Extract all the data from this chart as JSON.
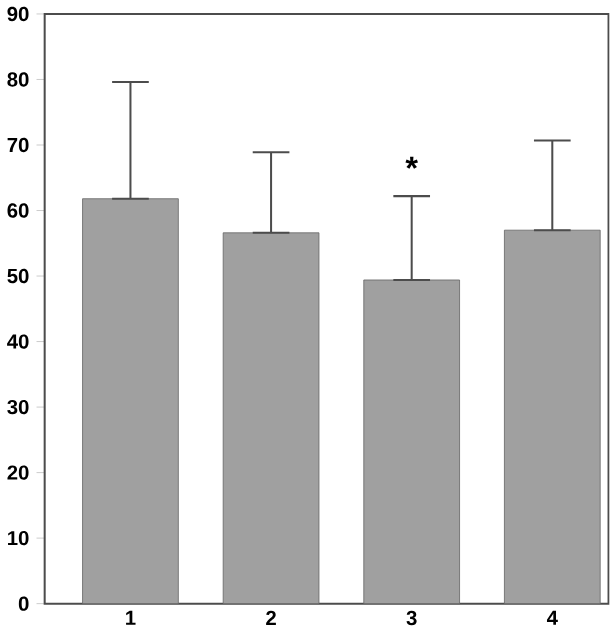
{
  "chart_data": {
    "type": "bar",
    "categories": [
      "1",
      "2",
      "3",
      "4"
    ],
    "values": [
      61.8,
      56.6,
      49.4,
      57.0
    ],
    "errors": [
      [
        61.8,
        79.6
      ],
      [
        56.6,
        68.9
      ],
      [
        49.4,
        62.2
      ],
      [
        57.0,
        70.7
      ]
    ],
    "color": "#a0a0a0",
    "ylim": [
      0,
      90
    ],
    "yticks": [
      0,
      10,
      20,
      30,
      40,
      50,
      60,
      70,
      80,
      90
    ],
    "grid": false,
    "annotations": [
      "*"
    ]
  }
}
